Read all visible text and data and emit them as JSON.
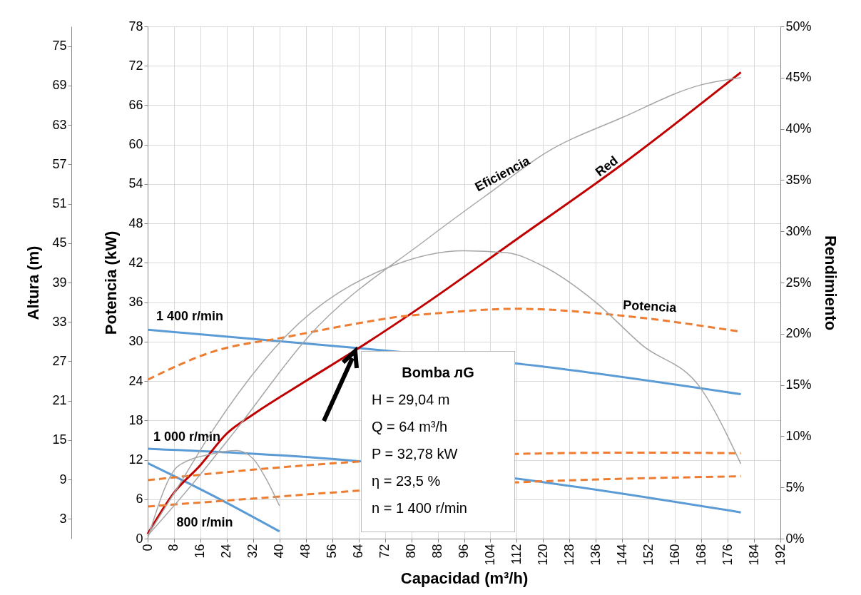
{
  "chart_data": {
    "type": "line",
    "xlabel": "Capacidad (m³/h)",
    "ylabel": "Potencia (kW)",
    "y2label": "Rendimiento",
    "y3label": "Altura (m)",
    "xlim": [
      0,
      192
    ],
    "xticks": [
      0,
      8,
      16,
      24,
      32,
      40,
      48,
      56,
      64,
      72,
      80,
      88,
      96,
      104,
      112,
      120,
      128,
      136,
      144,
      152,
      160,
      168,
      176,
      184,
      192
    ],
    "ylim": [
      0,
      78
    ],
    "yticks": [
      0,
      6,
      12,
      18,
      24,
      30,
      36,
      42,
      48,
      54,
      60,
      66,
      72,
      78
    ],
    "y3lim": [
      0,
      78
    ],
    "y3ticks": [
      3,
      9,
      15,
      21,
      27,
      33,
      39,
      45,
      51,
      57,
      63,
      69,
      75
    ],
    "y2lim": [
      0,
      50
    ],
    "y2ticks": [
      {
        "value": 0,
        "label": "0%"
      },
      {
        "value": 5,
        "label": "5%"
      },
      {
        "value": 10,
        "label": "10%"
      },
      {
        "value": 15,
        "label": "15%"
      },
      {
        "value": 20,
        "label": "20%"
      },
      {
        "value": 25,
        "label": "25%"
      },
      {
        "value": 30,
        "label": "30%"
      },
      {
        "value": 35,
        "label": "35%"
      },
      {
        "value": 40,
        "label": "40%"
      },
      {
        "value": 45,
        "label": "45%"
      },
      {
        "value": 50,
        "label": "50%"
      }
    ],
    "grid": true,
    "series": [
      {
        "name": "1 400 r/min",
        "color": "#5b9bd5",
        "axis": "y3",
        "x": [
          0,
          64,
          120,
          180
        ],
        "values": [
          31.8,
          29.0,
          26.2,
          22.0
        ]
      },
      {
        "name": "1 000 r/min",
        "color": "#5b9bd5",
        "axis": "y3",
        "x": [
          0,
          64,
          120,
          180
        ],
        "values": [
          13.7,
          11.8,
          8.6,
          4.0
        ]
      },
      {
        "name": "800 r/min",
        "color": "#5b9bd5",
        "axis": "y3",
        "x": [
          0,
          20,
          40
        ],
        "values": [
          11.5,
          6.5,
          1.1
        ]
      },
      {
        "name": "Red",
        "color": "#c00000",
        "axis": "y3",
        "x": [
          0,
          8,
          16,
          24,
          32,
          48,
          64,
          85,
          112,
          144,
          180
        ],
        "values": [
          0.7,
          7.0,
          11.2,
          16.0,
          18.9,
          24.0,
          29.0,
          36.0,
          45.6,
          57.0,
          71.0
        ]
      },
      {
        "name": "Potencia",
        "color": "#ed7d31",
        "line_style": "dashed",
        "x": [
          0,
          20,
          42,
          64,
          78,
          85,
          112,
          143,
          180
        ],
        "values": [
          24.2,
          28.5,
          30.7,
          32.8,
          33.9,
          34.2,
          35.0,
          34.0,
          31.5
        ]
      },
      {
        "color": "#ed7d31",
        "line_style": "dashed",
        "x": [
          0,
          32,
          63,
          112,
          150,
          180
        ],
        "values": [
          8.9,
          10.5,
          11.7,
          12.9,
          13.1,
          13.0
        ]
      },
      {
        "color": "#ed7d31",
        "line_style": "dashed",
        "x": [
          0,
          32,
          64,
          113,
          180
        ],
        "values": [
          4.9,
          6.1,
          7.3,
          8.6,
          9.5
        ]
      },
      {
        "name": "Eficiencia",
        "color": "#a6a6a6",
        "axis": "y2",
        "x": [
          0,
          13,
          27,
          49,
          85,
          104,
          121,
          144,
          168,
          180
        ],
        "values": [
          0.3,
          5.1,
          10.7,
          19.8,
          29.3,
          33.8,
          37.7,
          41.1,
          44.3,
          45.0
        ]
      },
      {
        "color": "#a6a6a6",
        "axis": "y2",
        "x": [
          0,
          9.3,
          20,
          42,
          74,
          96,
          109,
          120,
          135.5,
          150,
          168,
          180
        ],
        "values": [
          0.3,
          5.1,
          10.7,
          19.8,
          26.6,
          28.1,
          27.9,
          26.6,
          23.2,
          18.9,
          14.6,
          7.3
        ]
      },
      {
        "color": "#a6a6a6",
        "axis": "y2",
        "x": [
          0,
          9.3,
          20,
          27,
          32,
          36,
          40
        ],
        "values": [
          0.0,
          7.1,
          8.3,
          8.6,
          7.8,
          5.8,
          3.2
        ]
      }
    ],
    "annotations": [
      "Bomba лG",
      "H = 29,04 m",
      "Q = 64 m³/h",
      "P = 32,78 kW",
      "η = 23,5 %",
      "n = 1 400 r/min"
    ]
  }
}
